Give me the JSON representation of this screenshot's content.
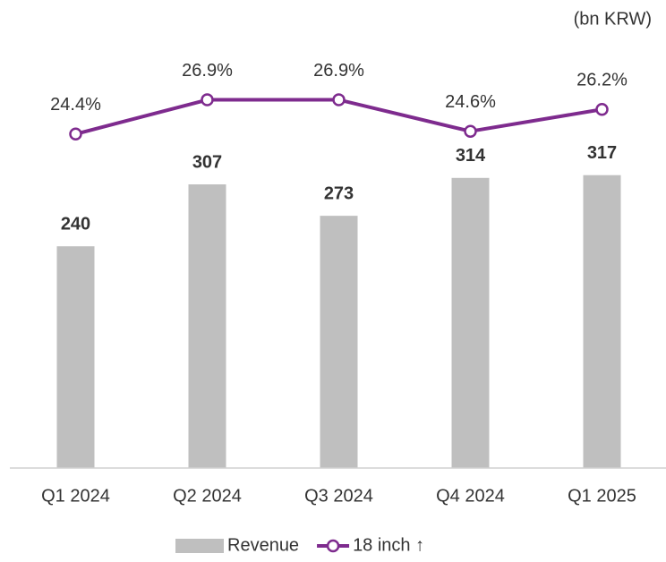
{
  "chart_data": {
    "type": "bar-line",
    "unit_label": "(bn KRW)",
    "categories": [
      "Q1 2024",
      "Q2 2024",
      "Q3 2024",
      "Q4 2024",
      "Q1 2025"
    ],
    "series": [
      {
        "name": "Revenue",
        "type": "bar",
        "color": "#bfbfbf",
        "values": [
          240,
          307,
          273,
          314,
          317
        ]
      },
      {
        "name": "18 inch ↑",
        "type": "line",
        "axis": "y2",
        "color": "#7e2b8e",
        "values": [
          24.4,
          26.9,
          26.9,
          24.6,
          26.2
        ],
        "value_labels": [
          "24.4%",
          "26.9%",
          "26.9%",
          "24.6%",
          "26.2%"
        ]
      }
    ],
    "ylim": [
      0,
      400
    ],
    "y2lim": [
      0,
      27
    ],
    "legend": "bottom"
  }
}
